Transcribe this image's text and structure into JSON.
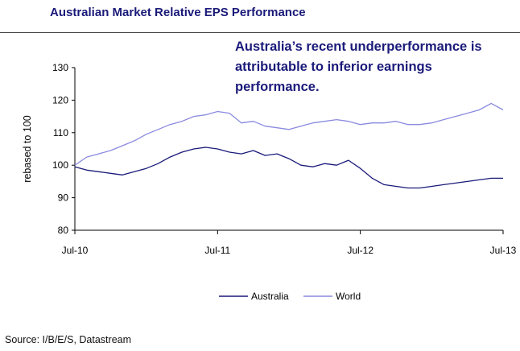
{
  "header": {
    "title": "Australian Market Relative EPS Performance",
    "annotation": "Australia’s recent underperformance is attributable to inferior earnings performance."
  },
  "chart_data": {
    "type": "line",
    "title": "Australian Market Relative EPS Performance",
    "ylabel": "rebased to 100",
    "xlabel": "",
    "ylim": [
      80,
      130
    ],
    "yticks": [
      80,
      90,
      100,
      110,
      120,
      130
    ],
    "xlim": [
      "2010-07",
      "2013-07"
    ],
    "xticks": [
      "Jul-10",
      "Jul-11",
      "Jul-12",
      "Jul-13"
    ],
    "grid": false,
    "legend_position": "bottom",
    "series": [
      {
        "name": "Australia",
        "color": "#1a1a7a",
        "points": [
          [
            "2010-07",
            99.5
          ],
          [
            "2010-08",
            98.5
          ],
          [
            "2010-09",
            98.0
          ],
          [
            "2010-10",
            97.5
          ],
          [
            "2010-11",
            97.0
          ],
          [
            "2010-12",
            98.0
          ],
          [
            "2011-01",
            99.0
          ],
          [
            "2011-02",
            100.5
          ],
          [
            "2011-03",
            102.5
          ],
          [
            "2011-04",
            104.0
          ],
          [
            "2011-05",
            105.0
          ],
          [
            "2011-06",
            105.5
          ],
          [
            "2011-07",
            105.0
          ],
          [
            "2011-08",
            104.0
          ],
          [
            "2011-09",
            103.5
          ],
          [
            "2011-10",
            104.5
          ],
          [
            "2011-11",
            103.0
          ],
          [
            "2011-12",
            103.5
          ],
          [
            "2012-01",
            102.0
          ],
          [
            "2012-02",
            100.0
          ],
          [
            "2012-03",
            99.5
          ],
          [
            "2012-04",
            100.5
          ],
          [
            "2012-05",
            100.0
          ],
          [
            "2012-06",
            101.5
          ],
          [
            "2012-07",
            99.0
          ],
          [
            "2012-08",
            96.0
          ],
          [
            "2012-09",
            94.0
          ],
          [
            "2012-10",
            93.5
          ],
          [
            "2012-11",
            93.0
          ],
          [
            "2012-12",
            93.0
          ],
          [
            "2013-01",
            93.5
          ],
          [
            "2013-02",
            94.0
          ],
          [
            "2013-03",
            94.5
          ],
          [
            "2013-04",
            95.0
          ],
          [
            "2013-05",
            95.5
          ],
          [
            "2013-06",
            96.0
          ],
          [
            "2013-07",
            96.0
          ]
        ]
      },
      {
        "name": "World",
        "color": "#8a8ae0",
        "points": [
          [
            "2010-07",
            100.0
          ],
          [
            "2010-08",
            102.5
          ],
          [
            "2010-09",
            103.5
          ],
          [
            "2010-10",
            104.5
          ],
          [
            "2010-11",
            106.0
          ],
          [
            "2010-12",
            107.5
          ],
          [
            "2011-01",
            109.5
          ],
          [
            "2011-02",
            111.0
          ],
          [
            "2011-03",
            112.5
          ],
          [
            "2011-04",
            113.5
          ],
          [
            "2011-05",
            115.0
          ],
          [
            "2011-06",
            115.5
          ],
          [
            "2011-07",
            116.5
          ],
          [
            "2011-08",
            116.0
          ],
          [
            "2011-09",
            113.0
          ],
          [
            "2011-10",
            113.5
          ],
          [
            "2011-11",
            112.0
          ],
          [
            "2011-12",
            111.5
          ],
          [
            "2012-01",
            111.0
          ],
          [
            "2012-02",
            112.0
          ],
          [
            "2012-03",
            113.0
          ],
          [
            "2012-04",
            113.5
          ],
          [
            "2012-05",
            114.0
          ],
          [
            "2012-06",
            113.5
          ],
          [
            "2012-07",
            112.5
          ],
          [
            "2012-08",
            113.0
          ],
          [
            "2012-09",
            113.0
          ],
          [
            "2012-10",
            113.5
          ],
          [
            "2012-11",
            112.5
          ],
          [
            "2012-12",
            112.5
          ],
          [
            "2013-01",
            113.0
          ],
          [
            "2013-02",
            114.0
          ],
          [
            "2013-03",
            115.0
          ],
          [
            "2013-04",
            116.0
          ],
          [
            "2013-05",
            117.0
          ],
          [
            "2013-06",
            119.0
          ],
          [
            "2013-07",
            117.0
          ]
        ]
      }
    ]
  },
  "footer": {
    "source": "Source: I/B/E/S, Datastream"
  }
}
